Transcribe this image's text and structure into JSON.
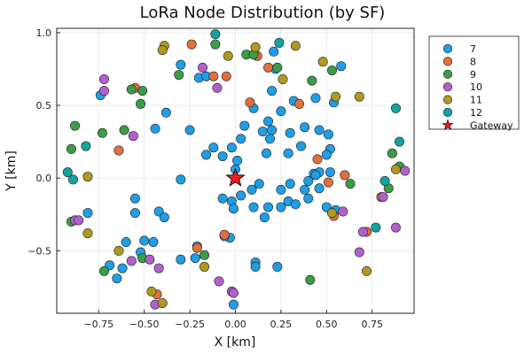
{
  "chart_data": {
    "type": "scatter",
    "title": "LoRa Node Distribution (by SF)",
    "xlabel": "X [km]",
    "ylabel": "Y [km]",
    "xlim": [
      -0.98,
      0.98
    ],
    "ylim": [
      -0.93,
      1.03
    ],
    "xticks": [
      -0.75,
      -0.5,
      -0.25,
      0.0,
      0.25,
      0.5,
      0.75
    ],
    "xtick_labels": [
      "−0.75",
      "−0.50",
      "−0.25",
      "0.00",
      "0.25",
      "0.50",
      "0.75"
    ],
    "yticks": [
      -0.5,
      0.0,
      0.5,
      1.0
    ],
    "ytick_labels": [
      "−0.5",
      "0.0",
      "0.5",
      "1.0"
    ],
    "grid": true,
    "legend_position": "top-right",
    "series": [
      {
        "name": "7",
        "color": "#1f9ee8",
        "marker": "circle",
        "points": [
          [
            -0.74,
            0.57
          ],
          [
            -0.3,
            0.78
          ],
          [
            -0.25,
            0.33
          ],
          [
            -0.2,
            0.69
          ],
          [
            -0.16,
            0.7
          ],
          [
            -0.12,
            0.21
          ],
          [
            -0.16,
            0.16
          ],
          [
            -0.07,
            0.15
          ],
          [
            -0.02,
            0.21
          ],
          [
            0.03,
            0.27
          ],
          [
            0.05,
            0.36
          ],
          [
            0.1,
            0.48
          ],
          [
            0.2,
            0.6
          ],
          [
            0.22,
            0.75
          ],
          [
            0.21,
            0.87
          ],
          [
            0.15,
            0.32
          ],
          [
            0.2,
            0.33
          ],
          [
            0.19,
            0.27
          ],
          [
            0.17,
            0.17
          ],
          [
            0.25,
            0.46
          ],
          [
            0.3,
            0.31
          ],
          [
            0.36,
            0.22
          ],
          [
            0.38,
            0.35
          ],
          [
            0.46,
            0.33
          ],
          [
            0.51,
            0.3
          ],
          [
            0.52,
            0.2
          ],
          [
            0.5,
            0.16
          ],
          [
            0.58,
            0.77
          ],
          [
            0.44,
            0.55
          ],
          [
            0.54,
            0.52
          ],
          [
            0.32,
            0.53
          ],
          [
            0.29,
            0.17
          ],
          [
            0.43,
            0.03
          ],
          [
            0.46,
            0.04
          ],
          [
            0.38,
            -0.08
          ],
          [
            0.52,
            0.04
          ],
          [
            0.4,
            -0.02
          ],
          [
            0.46,
            -0.07
          ],
          [
            0.3,
            -0.04
          ],
          [
            0.25,
            -0.08
          ],
          [
            0.18,
            -0.2
          ],
          [
            0.25,
            -0.2
          ],
          [
            0.29,
            -0.16
          ],
          [
            0.33,
            -0.18
          ],
          [
            0.4,
            -0.14
          ],
          [
            0.5,
            -0.2
          ],
          [
            0.55,
            -0.22
          ],
          [
            0.1,
            -0.2
          ],
          [
            0.16,
            -0.27
          ],
          [
            0.09,
            -0.08
          ],
          [
            0.03,
            -0.12
          ],
          [
            0.0,
            0.06
          ],
          [
            0.01,
            0.12
          ],
          [
            -0.07,
            -0.14
          ],
          [
            -0.02,
            -0.16
          ],
          [
            -0.01,
            -0.21
          ],
          [
            0.13,
            -0.04
          ],
          [
            -0.3,
            -0.01
          ],
          [
            -0.21,
            -0.47
          ],
          [
            -0.22,
            -0.55
          ],
          [
            -0.3,
            -0.56
          ],
          [
            -0.03,
            -0.41
          ],
          [
            -0.06,
            -0.4
          ],
          [
            0.11,
            -0.58
          ],
          [
            0.11,
            -0.61
          ],
          [
            0.23,
            -0.61
          ],
          [
            -0.01,
            -0.87
          ],
          [
            -0.42,
            -0.23
          ],
          [
            -0.39,
            -0.27
          ],
          [
            -0.45,
            -0.44
          ],
          [
            -0.5,
            -0.43
          ],
          [
            -0.52,
            -0.51
          ],
          [
            -0.6,
            -0.44
          ],
          [
            -0.62,
            -0.62
          ],
          [
            -0.65,
            -0.69
          ],
          [
            -0.55,
            -0.24
          ],
          [
            -0.55,
            -0.14
          ],
          [
            -0.38,
            0.45
          ],
          [
            -0.44,
            0.34
          ],
          [
            -0.81,
            -0.24
          ],
          [
            -0.69,
            -0.6
          ],
          [
            0.44,
            0.02
          ],
          [
            0.18,
            0.39
          ]
        ]
      },
      {
        "name": "8",
        "color": "#e0703e",
        "marker": "circle",
        "points": [
          [
            -0.55,
            0.62
          ],
          [
            -0.64,
            0.19
          ],
          [
            -0.24,
            0.92
          ],
          [
            -0.12,
            0.7
          ],
          [
            -0.05,
            0.7
          ],
          [
            0.08,
            0.52
          ],
          [
            0.12,
            0.84
          ],
          [
            0.18,
            0.76
          ],
          [
            0.35,
            0.51
          ],
          [
            0.45,
            0.13
          ],
          [
            0.51,
            -0.03
          ],
          [
            0.54,
            -0.26
          ],
          [
            0.6,
            0.02
          ],
          [
            0.8,
            -0.13
          ],
          [
            -0.21,
            -0.48
          ],
          [
            -0.06,
            -0.39
          ],
          [
            -0.43,
            -0.8
          ],
          [
            0.72,
            -0.37
          ]
        ]
      },
      {
        "name": "9",
        "color": "#3a9c47",
        "marker": "circle",
        "points": [
          [
            -0.88,
            0.36
          ],
          [
            -0.9,
            0.2
          ],
          [
            -0.73,
            0.31
          ],
          [
            -0.61,
            0.33
          ],
          [
            -0.57,
            0.61
          ],
          [
            -0.51,
            0.6
          ],
          [
            -0.52,
            0.51
          ],
          [
            -0.31,
            0.71
          ],
          [
            -0.11,
            0.92
          ],
          [
            0.06,
            0.85
          ],
          [
            0.1,
            0.85
          ],
          [
            0.23,
            0.76
          ],
          [
            0.42,
            0.67
          ],
          [
            0.53,
            0.74
          ],
          [
            0.63,
            -0.04
          ],
          [
            0.86,
            0.17
          ],
          [
            0.9,
            0.08
          ],
          [
            0.84,
            -0.07
          ],
          [
            -0.9,
            -0.3
          ],
          [
            -0.72,
            -0.64
          ],
          [
            -0.51,
            -0.55
          ],
          [
            -0.17,
            -0.53
          ],
          [
            0.41,
            -0.7
          ]
        ]
      },
      {
        "name": "10",
        "color": "#b160cc",
        "marker": "circle",
        "points": [
          [
            -0.72,
            0.68
          ],
          [
            -0.72,
            0.6
          ],
          [
            -0.56,
            0.29
          ],
          [
            -0.18,
            0.76
          ],
          [
            -0.1,
            0.62
          ],
          [
            -0.88,
            -0.29
          ],
          [
            -0.86,
            -0.29
          ],
          [
            -0.57,
            -0.57
          ],
          [
            -0.47,
            -0.56
          ],
          [
            -0.42,
            -0.62
          ],
          [
            -0.44,
            -0.87
          ],
          [
            -0.09,
            -0.71
          ],
          [
            -0.02,
            -0.78
          ],
          [
            -0.01,
            -0.79
          ],
          [
            0.59,
            -0.23
          ],
          [
            0.68,
            -0.51
          ],
          [
            0.7,
            -0.37
          ],
          [
            0.81,
            -0.13
          ],
          [
            0.88,
            -0.34
          ],
          [
            0.93,
            0.05
          ]
        ]
      },
      {
        "name": "11",
        "color": "#ae9a1e",
        "marker": "circle",
        "points": [
          [
            -0.39,
            0.91
          ],
          [
            -0.4,
            0.88
          ],
          [
            -0.04,
            0.84
          ],
          [
            0.11,
            0.9
          ],
          [
            0.33,
            0.91
          ],
          [
            0.26,
            0.68
          ],
          [
            0.48,
            0.8
          ],
          [
            0.55,
            0.56
          ],
          [
            0.68,
            0.56
          ],
          [
            0.88,
            0.06
          ],
          [
            -0.81,
            0.01
          ],
          [
            -0.81,
            -0.38
          ],
          [
            -0.64,
            -0.5
          ],
          [
            -0.46,
            -0.78
          ],
          [
            -0.4,
            -0.86
          ],
          [
            -0.17,
            -0.61
          ],
          [
            0.53,
            -0.24
          ],
          [
            0.72,
            -0.64
          ]
        ]
      },
      {
        "name": "12",
        "color": "#12a3a0",
        "marker": "circle",
        "points": [
          [
            -0.82,
            0.22
          ],
          [
            -0.92,
            0.04
          ],
          [
            -0.89,
            -0.01
          ],
          [
            -0.11,
            0.99
          ],
          [
            0.24,
            0.93
          ],
          [
            0.88,
            0.48
          ],
          [
            0.9,
            0.25
          ],
          [
            0.82,
            -0.02
          ],
          [
            0.77,
            -0.34
          ]
        ]
      },
      {
        "name": "Gateway",
        "color": "#ee1c1c",
        "marker": "star",
        "points": [
          [
            0.0,
            0.0
          ]
        ]
      }
    ]
  }
}
